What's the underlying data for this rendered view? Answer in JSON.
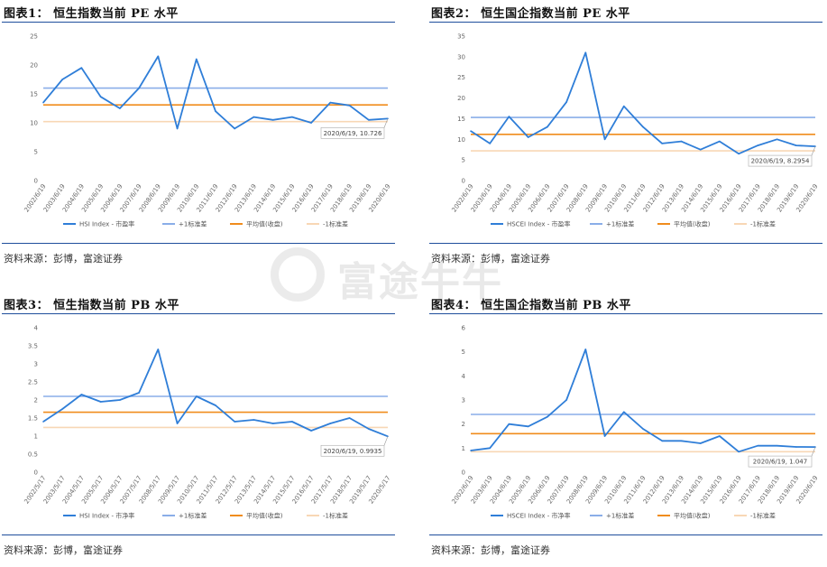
{
  "watermark": {
    "text": "富途牛牛",
    "icon": "futu-logo-icon"
  },
  "colors": {
    "series": "#2f7ed8",
    "plus1": "#8aaee8",
    "avg": "#f08c1c",
    "minus1": "#f8d7b5",
    "rule": "#1f4e9c"
  },
  "panels": [
    {
      "title": "图表1：  恒生指数当前 PE 水平",
      "source": "资料来源：彭博，富途证券",
      "legend": {
        "series": "HSI Index - 市盈率",
        "plus1": "+1标准差",
        "avg": "平均值(收盘)",
        "minus1": "-1标准差"
      },
      "callout": "2020/6/19, 10.726"
    },
    {
      "title": "图表2：  恒生国企指数当前 PE 水平",
      "source": "资料来源：彭博，富途证券",
      "legend": {
        "series": "HSCEI Index - 市盈率",
        "plus1": "+1标准差",
        "avg": "平均值(收盘)",
        "minus1": "-1标准差"
      },
      "callout": "2020/6/19, 8.2954"
    },
    {
      "title": "图表3：  恒生指数当前 PB 水平",
      "source": "资料来源：彭博，富途证券",
      "legend": {
        "series": "HSI Index - 市净率",
        "plus1": "+1标准差",
        "avg": "平均值(收盘)",
        "minus1": "-1标准差"
      },
      "callout": "2020/6/19, 0.9935"
    },
    {
      "title": "图表4：  恒生国企指数当前 PB 水平",
      "source": "资料来源：彭博，富途证券",
      "legend": {
        "series": "HSCEI Index - 市净率",
        "plus1": "+1标准差",
        "avg": "平均值(收盘)",
        "minus1": "-1标准差"
      },
      "callout": "2020/6/19, 1.047"
    }
  ],
  "chart_data": [
    {
      "type": "line",
      "ylim": [
        0,
        25
      ],
      "yticks": [
        0,
        5,
        10,
        15,
        20,
        25
      ],
      "x": [
        "2002/6/19",
        "2003/6/19",
        "2004/6/19",
        "2005/6/19",
        "2006/6/19",
        "2007/6/19",
        "2008/6/19",
        "2009/6/19",
        "2010/6/19",
        "2011/6/19",
        "2012/6/19",
        "2013/6/19",
        "2014/6/19",
        "2015/6/19",
        "2016/6/19",
        "2017/6/19",
        "2018/6/19",
        "2019/6/19",
        "2020/6/19"
      ],
      "series": [
        {
          "name": "HSI Index - 市盈率",
          "values": [
            13.5,
            17.5,
            19.5,
            14.5,
            12.5,
            16,
            21.5,
            9,
            21,
            12,
            9,
            11,
            10.5,
            11,
            10,
            13.5,
            13,
            10.5,
            10.726
          ]
        }
      ],
      "hlines": {
        "plus1": 16,
        "avg": 13.1,
        "minus1": 10.2
      }
    },
    {
      "type": "line",
      "ylim": [
        0,
        35
      ],
      "yticks": [
        0,
        5,
        10,
        15,
        20,
        25,
        30,
        35
      ],
      "x": [
        "2002/6/19",
        "2003/6/19",
        "2004/6/19",
        "2005/6/19",
        "2006/6/19",
        "2007/6/19",
        "2008/6/19",
        "2009/6/19",
        "2010/6/19",
        "2011/6/19",
        "2012/6/19",
        "2013/6/19",
        "2014/6/19",
        "2015/6/19",
        "2016/6/19",
        "2017/6/19",
        "2018/6/19",
        "2019/6/19",
        "2020/6/19"
      ],
      "series": [
        {
          "name": "HSCEI Index - 市盈率",
          "values": [
            12,
            9,
            15.5,
            10.5,
            13,
            19,
            31,
            10,
            18,
            13,
            9,
            9.5,
            7.5,
            9.5,
            6.5,
            8.5,
            10,
            8.5,
            8.2954
          ]
        }
      ],
      "hlines": {
        "plus1": 15.3,
        "avg": 11.2,
        "minus1": 7.2
      }
    },
    {
      "type": "line",
      "ylim": [
        0,
        4
      ],
      "yticks": [
        0,
        0.5,
        1,
        1.5,
        2,
        2.5,
        3,
        3.5,
        4
      ],
      "x": [
        "2002/5/17",
        "2003/5/17",
        "2004/5/17",
        "2005/5/17",
        "2006/5/17",
        "2007/5/17",
        "2008/5/17",
        "2009/5/17",
        "2010/5/17",
        "2011/5/17",
        "2012/5/17",
        "2013/5/17",
        "2014/5/17",
        "2015/5/17",
        "2016/5/17",
        "2017/5/17",
        "2018/5/17",
        "2019/5/17",
        "2020/5/17"
      ],
      "series": [
        {
          "name": "HSI Index - 市净率",
          "values": [
            1.4,
            1.75,
            2.15,
            1.95,
            2.0,
            2.2,
            3.4,
            1.35,
            2.1,
            1.85,
            1.4,
            1.45,
            1.35,
            1.4,
            1.15,
            1.35,
            1.5,
            1.2,
            0.9935
          ]
        }
      ],
      "hlines": {
        "plus1": 2.1,
        "avg": 1.66,
        "minus1": 1.24
      }
    },
    {
      "type": "line",
      "ylim": [
        0,
        6
      ],
      "yticks": [
        0,
        1,
        2,
        3,
        4,
        5,
        6
      ],
      "x": [
        "2002/6/19",
        "2003/6/19",
        "2004/6/19",
        "2005/6/19",
        "2006/6/19",
        "2007/6/19",
        "2008/6/19",
        "2009/6/19",
        "2010/6/19",
        "2011/6/19",
        "2012/6/19",
        "2013/6/19",
        "2014/6/19",
        "2015/6/19",
        "2016/6/19",
        "2017/6/19",
        "2018/6/19",
        "2019/6/19",
        "2020/6/19"
      ],
      "series": [
        {
          "name": "HSCEI Index - 市净率",
          "values": [
            0.9,
            1.0,
            2.0,
            1.9,
            2.3,
            3.0,
            5.1,
            1.5,
            2.5,
            1.8,
            1.3,
            1.3,
            1.2,
            1.5,
            0.85,
            1.1,
            1.1,
            1.05,
            1.047
          ]
        }
      ],
      "hlines": {
        "plus1": 2.4,
        "avg": 1.6,
        "minus1": 0.85
      }
    }
  ]
}
